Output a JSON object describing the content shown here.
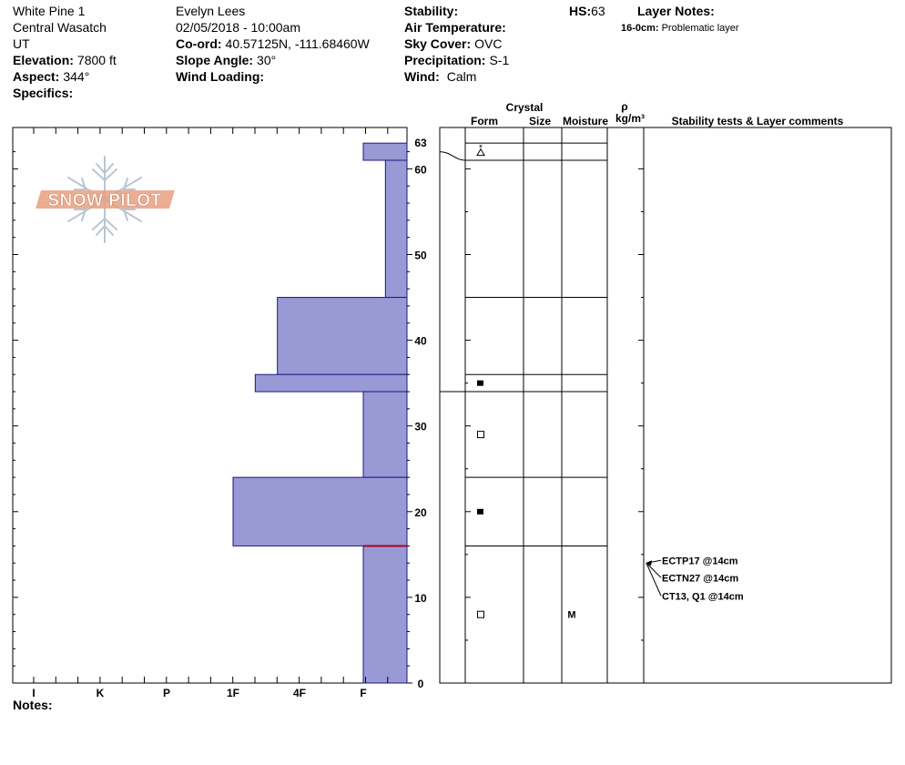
{
  "header": {
    "col1": {
      "location": "White Pine 1",
      "range": "Central Wasatch",
      "state": "UT",
      "elevation_label": "Elevation:",
      "elevation_value": "7800 ft",
      "aspect_label": "Aspect:",
      "aspect_value": "344°",
      "specifics_label": "Specifics:"
    },
    "col2": {
      "observer": "Evelyn Lees",
      "datetime": "02/05/2018 - 10:00am",
      "coord_label": "Co-ord:",
      "coord_value": "40.57125N, -111.68460W",
      "slope_label": "Slope Angle:",
      "slope_value": "30°",
      "wind_loading_label": "Wind Loading:"
    },
    "col3": {
      "stability_label": "Stability:",
      "air_temp_label": "Air Temperature:",
      "sky_label": "Sky Cover:",
      "sky_value": "OVC",
      "precip_label": "Precipitation:",
      "precip_value": "S-1",
      "wind_label": "Wind:",
      "wind_value": "Calm"
    },
    "hs_label": "HS:",
    "hs_value": "63",
    "layer_notes_label": "Layer Notes:",
    "layer_note_depth": "16-0cm:",
    "layer_note_text": "Problematic layer"
  },
  "logo_text": "SNOW PILOT",
  "table_headers": {
    "crystal": "Crystal",
    "form": "Form",
    "size": "Size",
    "moisture": "Moisture",
    "rho": "ρ",
    "density_unit": "kg/m³",
    "stability": "Stability tests & Layer comments"
  },
  "notes_label": "Notes:",
  "colors": {
    "bar_fill": "#9999d6",
    "bar_stroke": "#1a1a80",
    "weak_layer": "#b00020",
    "logo_orange": "#e8a080",
    "logo_blue": "#b8c6d4"
  },
  "chart_data": {
    "type": "bar",
    "orientation": "horizontal",
    "title": "",
    "xlabel": "",
    "ylabel": "",
    "x_categories": [
      "I",
      "K",
      "P",
      "1F",
      "4F",
      "F"
    ],
    "ylim": [
      0,
      63
    ],
    "y_tick_labels": [
      "0",
      "10",
      "20",
      "30",
      "40",
      "50",
      "60",
      "63"
    ],
    "layers": [
      {
        "bottom": 61,
        "top": 63,
        "hardness": "F"
      },
      {
        "bottom": 45,
        "top": 61,
        "hardness": "F+"
      },
      {
        "bottom": 36,
        "top": 45,
        "hardness": "4F-"
      },
      {
        "bottom": 34,
        "top": 36,
        "hardness": "1F+"
      },
      {
        "bottom": 24,
        "top": 34,
        "hardness": "F"
      },
      {
        "bottom": 16,
        "top": 24,
        "hardness": "1F"
      },
      {
        "bottom": 0,
        "top": 16,
        "hardness": "F"
      }
    ],
    "weak_layer_depth": 16,
    "grain_forms": [
      {
        "height": 62,
        "symbol": "new-snow-rounding"
      },
      {
        "height": 35,
        "symbol": "faceted-rounded-filled"
      },
      {
        "height": 29,
        "symbol": "faceted-open"
      },
      {
        "height": 20,
        "symbol": "faceted-rounded-filled"
      },
      {
        "height": 8,
        "symbol": "faceted-open"
      }
    ],
    "moisture": [
      {
        "height": 8,
        "value": "M"
      }
    ],
    "stability_tests": [
      {
        "label": "ECTP17 @14cm"
      },
      {
        "label": "ECTN27 @14cm"
      },
      {
        "label": "CT13, Q1 @14cm"
      }
    ],
    "stability_test_height": 14
  }
}
